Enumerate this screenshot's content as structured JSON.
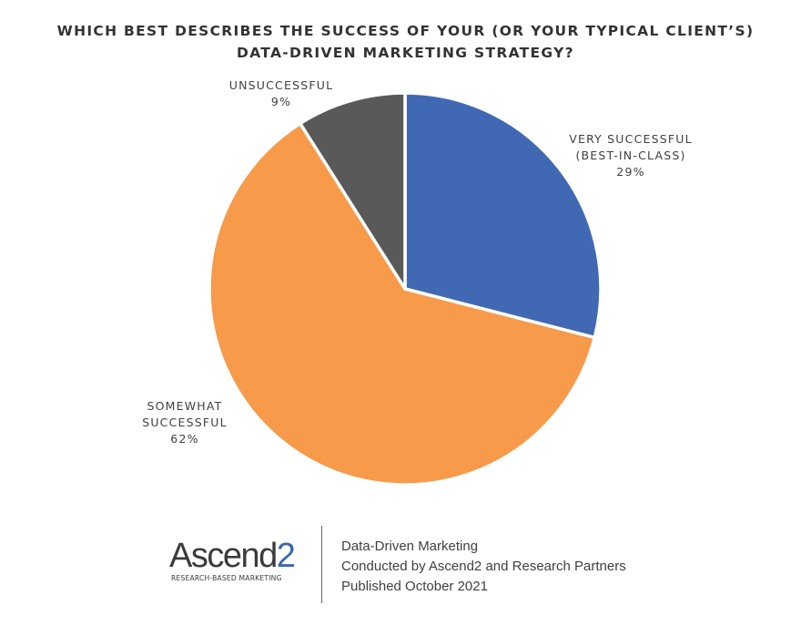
{
  "title": {
    "line1": "WHICH BEST DESCRIBES THE SUCCESS OF YOUR (OR YOUR TYPICAL CLIENT’S)",
    "line2": "DATA-DRIVEN MARKETING STRATEGY?"
  },
  "chart_data": {
    "type": "pie",
    "title": "WHICH BEST DESCRIBES THE SUCCESS OF YOUR (OR YOUR TYPICAL CLIENT’S) DATA-DRIVEN MARKETING STRATEGY?",
    "start_angle_deg": 0,
    "direction": "clockwise",
    "slices": [
      {
        "label_lines": [
          "VERY SUCCESSFUL",
          "(BEST-IN-CLASS)"
        ],
        "value": 29,
        "value_label": "29%",
        "color": "#4169b3"
      },
      {
        "label_lines": [
          "SOMEWHAT",
          "SUCCESSFUL"
        ],
        "value": 62,
        "value_label": "62%",
        "color": "#f79a4a"
      },
      {
        "label_lines": [
          "UNSUCCESSFUL"
        ],
        "value": 9,
        "value_label": "9%",
        "color": "#595959"
      }
    ]
  },
  "footer": {
    "logo_main": "Ascend",
    "logo_num": "2",
    "logo_tagline": "RESEARCH-BASED MARKETING",
    "lines": [
      "Data-Driven Marketing",
      "Conducted by Ascend2 and Research Partners",
      "Published October 2021"
    ]
  }
}
